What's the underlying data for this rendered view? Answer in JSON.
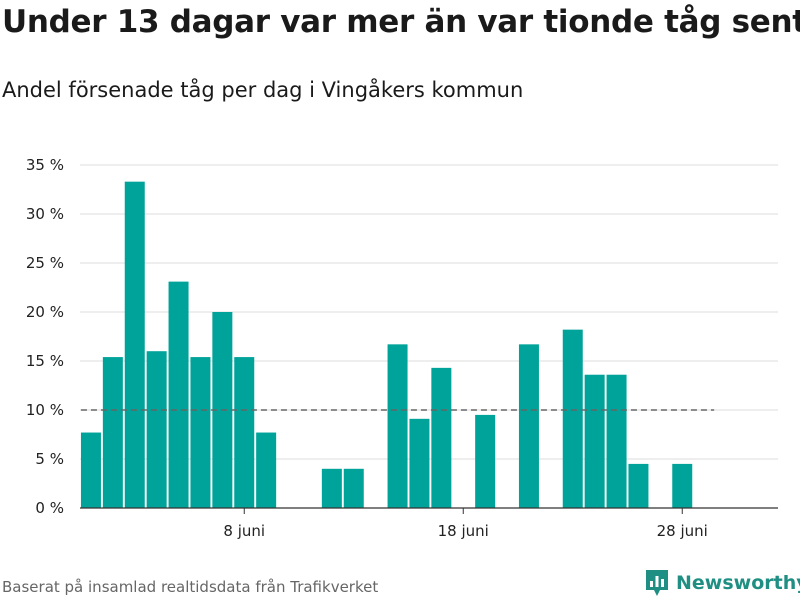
{
  "title": "Under 13 dagar var mer än var tionde tåg sent",
  "subtitle": "Andel försenade tåg per dag i Vingåkers kommun",
  "source": "Baserat på insamlad realtidsdata från Trafikverket",
  "brand": "Newsworthy",
  "chart_data": {
    "type": "bar",
    "x_unit": "day of June",
    "x": [
      1,
      2,
      3,
      4,
      5,
      6,
      7,
      8,
      9,
      10,
      11,
      12,
      13,
      14,
      15,
      16,
      17,
      18,
      19,
      20,
      21,
      22,
      23,
      24,
      25,
      26,
      27,
      28,
      29
    ],
    "values": [
      7.7,
      15.4,
      33.3,
      16.0,
      23.1,
      15.4,
      20.0,
      15.4,
      7.7,
      0,
      0,
      4.0,
      4.0,
      0,
      16.7,
      9.1,
      14.3,
      0,
      9.5,
      0,
      16.7,
      0,
      18.2,
      13.6,
      13.6,
      4.5,
      0,
      4.5,
      0
    ],
    "xticks": [
      8,
      18,
      28
    ],
    "xtick_labels": [
      "8 juni",
      "18 juni",
      "28 juni"
    ],
    "yticks": [
      0,
      5,
      10,
      15,
      20,
      25,
      30,
      35
    ],
    "ytick_labels": [
      "0 %",
      "5 %",
      "10 %",
      "15 %",
      "20 %",
      "25 %",
      "30 %",
      "35 %"
    ],
    "ylim": [
      0,
      35
    ],
    "reference_line": 10,
    "grid": true,
    "colors": {
      "bar": "#00a399",
      "reference": "#666666",
      "grid": "#dddddd",
      "axis": "#333333",
      "brand": "#1f8f84"
    }
  }
}
